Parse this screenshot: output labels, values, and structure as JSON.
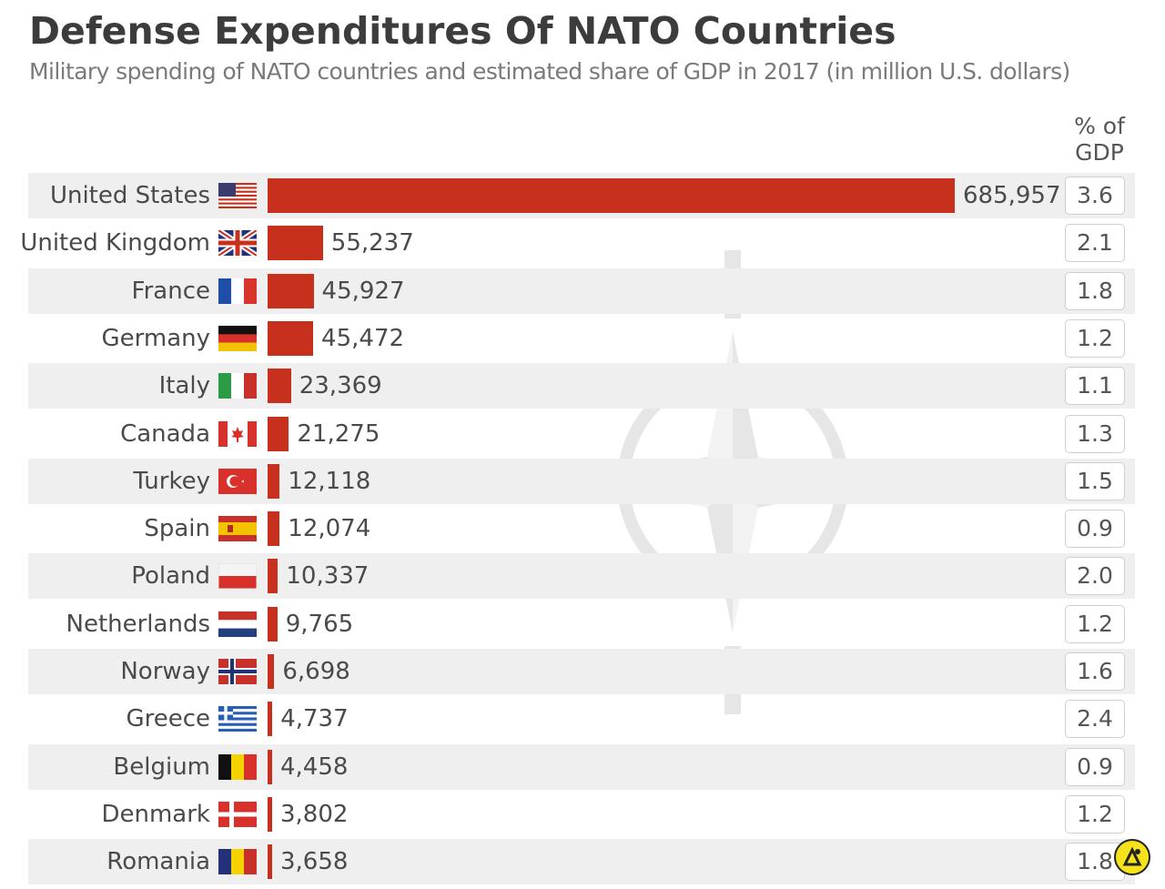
{
  "header": {
    "title": "Defense Expenditures Of NATO Countries",
    "subtitle": "Military spending of NATO countries and estimated share of GDP in 2017 (in million U.S. dollars)",
    "gdp_column_label": "% of GDP"
  },
  "chart_data": {
    "type": "bar",
    "orientation": "horizontal",
    "title": "Defense Expenditures Of NATO Countries",
    "subtitle": "Military spending of NATO countries and estimated share of GDP in 2017 (in million U.S. dollars)",
    "categories": [
      "United States",
      "United Kingdom",
      "France",
      "Germany",
      "Italy",
      "Canada",
      "Turkey",
      "Spain",
      "Poland",
      "Netherlands",
      "Norway",
      "Greece",
      "Belgium",
      "Denmark",
      "Romania"
    ],
    "series": [
      {
        "values": [
          685957,
          55237,
          45927,
          45472,
          23369,
          21275,
          12118,
          12074,
          10337,
          9765,
          6698,
          4737,
          4458,
          3802,
          3658
        ]
      }
    ],
    "value_labels": [
      "685,957",
      "55,237",
      "45,927",
      "45,472",
      "23,369",
      "21,275",
      "12,118",
      "12,074",
      "10,337",
      "9,765",
      "6,698",
      "4,737",
      "4,458",
      "3,802",
      "3,658"
    ],
    "gdp_share_label": "% of GDP",
    "gdp_share": [
      "3.6",
      "2.1",
      "1.8",
      "1.2",
      "1.1",
      "1.3",
      "1.5",
      "0.9",
      "2.0",
      "1.2",
      "1.6",
      "2.4",
      "0.9",
      "1.2",
      "1.8"
    ],
    "xlim": [
      0,
      685957
    ],
    "grid": false,
    "legend": "none",
    "bar_color": "#c8301e"
  },
  "flags": [
    "us-flag-icon",
    "uk-flag-icon",
    "france-flag-icon",
    "germany-flag-icon",
    "italy-flag-icon",
    "canada-flag-icon",
    "turkey-flag-icon",
    "spain-flag-icon",
    "poland-flag-icon",
    "netherlands-flag-icon",
    "norway-flag-icon",
    "greece-flag-icon",
    "belgium-flag-icon",
    "denmark-flag-icon",
    "romania-flag-icon"
  ],
  "watermark_icon": "nato-compass-star-icon",
  "brand_icon": "statista-logo-icon"
}
